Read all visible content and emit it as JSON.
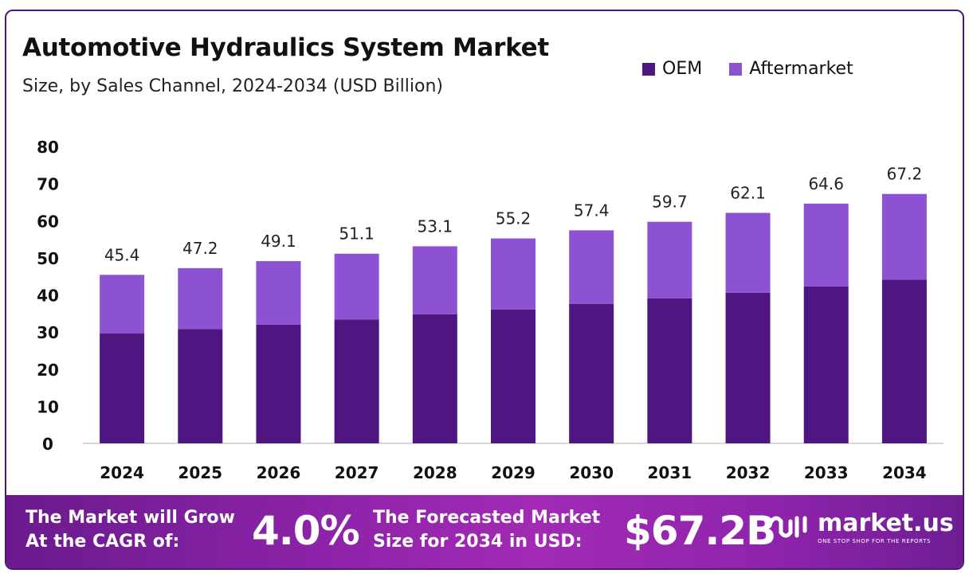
{
  "header": {
    "title": "Automotive Hydraulics System Market",
    "subtitle": "Size, by Sales Channel, 2024-2034 (USD Billion)"
  },
  "legend": {
    "oem_label": "OEM",
    "aftermarket_label": "Aftermarket"
  },
  "colors": {
    "oem": "#4f1682",
    "aftermarket": "#8d52d1",
    "axis": "#cccccc",
    "text": "#111111"
  },
  "chart_data": {
    "type": "bar",
    "stacked": true,
    "title": "Automotive Hydraulics System Market",
    "subtitle": "Size, by Sales Channel, 2024-2034 (USD Billion)",
    "xlabel": "",
    "ylabel": "",
    "ylim": [
      0,
      80
    ],
    "yticks": [
      0,
      10,
      20,
      30,
      40,
      50,
      60,
      70,
      80
    ],
    "categories": [
      "2024",
      "2025",
      "2026",
      "2027",
      "2028",
      "2029",
      "2030",
      "2031",
      "2032",
      "2033",
      "2034"
    ],
    "series": [
      {
        "name": "OEM",
        "values": [
          29.6,
          30.8,
          32.0,
          33.4,
          34.8,
          36.1,
          37.6,
          39.1,
          40.6,
          42.3,
          44.1
        ]
      },
      {
        "name": "Aftermarket",
        "values": [
          15.8,
          16.4,
          17.1,
          17.7,
          18.3,
          19.1,
          19.8,
          20.6,
          21.5,
          22.3,
          23.1
        ]
      }
    ],
    "totals": [
      "45.4",
      "47.2",
      "49.1",
      "51.1",
      "53.1",
      "55.2",
      "57.4",
      "59.7",
      "62.1",
      "64.6",
      "67.2"
    ],
    "legend_position": "top-right",
    "grid": false
  },
  "banner": {
    "cagr_line1": "The Market will Grow",
    "cagr_line2": "At the CAGR of:",
    "cagr_value": "4.0%",
    "forecast_line1": "The Forecasted Market",
    "forecast_line2": "Size for 2034 in USD:",
    "forecast_value": "$67.2B",
    "logo_name": "market.us",
    "logo_tagline": "ONE STOP SHOP FOR THE REPORTS",
    "logo_icon": "market-us-logo-icon"
  }
}
